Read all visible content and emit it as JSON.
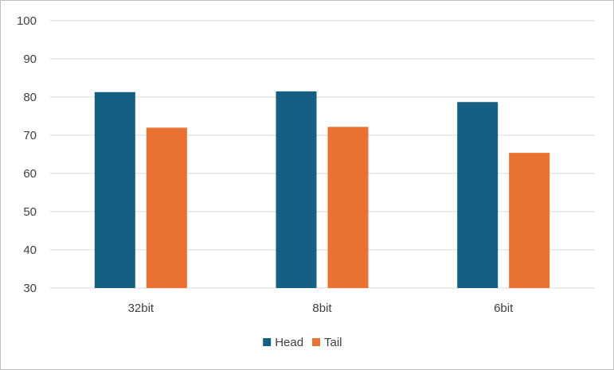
{
  "chart_data": {
    "type": "bar",
    "categories": [
      "32bit",
      "8bit",
      "6bit"
    ],
    "series": [
      {
        "name": "Head",
        "color": "#156082",
        "values": [
          81.3,
          81.5,
          78.7
        ]
      },
      {
        "name": "Tail",
        "color": "#E97132",
        "values": [
          72.0,
          72.2,
          65.4
        ]
      }
    ],
    "title": "",
    "xlabel": "",
    "ylabel": "",
    "ylim": [
      30,
      100
    ],
    "yticks": [
      30,
      40,
      50,
      60,
      70,
      80,
      90,
      100
    ],
    "grid": true,
    "legend_position": "bottom",
    "colors": {
      "gridline": "#d9d9d9",
      "axis_text": "#404040",
      "border": "#bfbfbf"
    }
  }
}
